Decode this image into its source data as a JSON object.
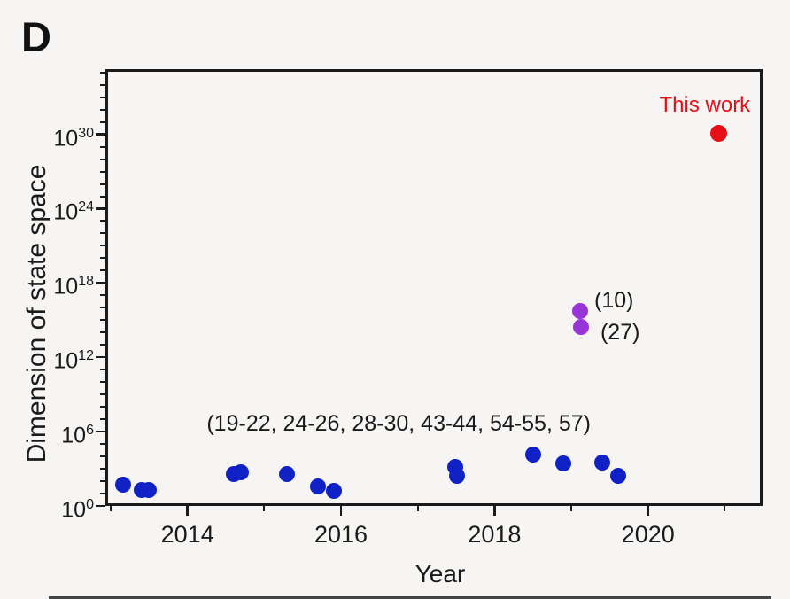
{
  "colors": {
    "background": "#f6f5f3",
    "axis": "#1b1b1b",
    "blue_series": "#1022c6",
    "purple_series": "#9834d8",
    "red_series": "#e60f17"
  },
  "chart_data": {
    "type": "scatter",
    "panel_label": "D",
    "title": "",
    "xlabel": "Year",
    "ylabel": "Dimension of state space",
    "x_axis": {
      "min": 2012.95,
      "max": 2021.5,
      "major_ticks": [
        2014,
        2016,
        2018,
        2020
      ],
      "minor_ticks": [
        2013,
        2015,
        2017,
        2019,
        2021
      ]
    },
    "y_axis": {
      "scale": "log10",
      "min_exponent": 0,
      "max_exponent": 35,
      "tick_label_base": "10",
      "major_exponents": [
        0,
        6,
        12,
        18,
        24,
        30
      ]
    },
    "series": [
      {
        "name": "prior-works-blue",
        "color": "#1022c6",
        "reference_label": "(19-22, 24-26, 28-30, 43-44, 54-55, 57)",
        "points": [
          [
            2013.16,
            1.75
          ],
          [
            2013.4,
            1.3
          ],
          [
            2013.5,
            1.3
          ],
          [
            2014.6,
            2.6
          ],
          [
            2014.7,
            2.7
          ],
          [
            2015.3,
            2.6
          ],
          [
            2015.7,
            1.55
          ],
          [
            2015.91,
            1.2
          ],
          [
            2017.49,
            3.17
          ],
          [
            2017.51,
            2.45
          ],
          [
            2018.5,
            4.13
          ],
          [
            2018.9,
            3.41
          ],
          [
            2019.4,
            3.53
          ],
          [
            2019.61,
            2.45
          ]
        ]
      },
      {
        "name": "prior-works-purple",
        "color": "#9834d8",
        "points": [
          [
            2019.12,
            15.76
          ],
          [
            2019.13,
            14.45
          ]
        ]
      },
      {
        "name": "this-work-red",
        "color": "#e60f17",
        "points": [
          [
            2020.92,
            30.05
          ]
        ]
      }
    ],
    "annotations": [
      {
        "name": "blue-refs-label",
        "text": "(19-22, 24-26, 28-30, 43-44, 54-55, 57)",
        "x_year": 2014.25,
        "y_exponent": 6.65,
        "align": "left",
        "color": "#1a1a1a"
      },
      {
        "name": "ref-10-label",
        "text": "(10)",
        "x_year": 2019.3,
        "y_exponent": 16.6,
        "align": "left",
        "color": "#1a1a1a"
      },
      {
        "name": "ref-27-label",
        "text": "(27)",
        "x_year": 2019.38,
        "y_exponent": 14.0,
        "align": "left",
        "color": "#1a1a1a"
      },
      {
        "name": "this-work-label",
        "text": "This work",
        "x_year": 2020.74,
        "y_exponent": 32.3,
        "align": "center",
        "color": "#e60f17"
      }
    ],
    "legend": "none",
    "grid": false
  }
}
